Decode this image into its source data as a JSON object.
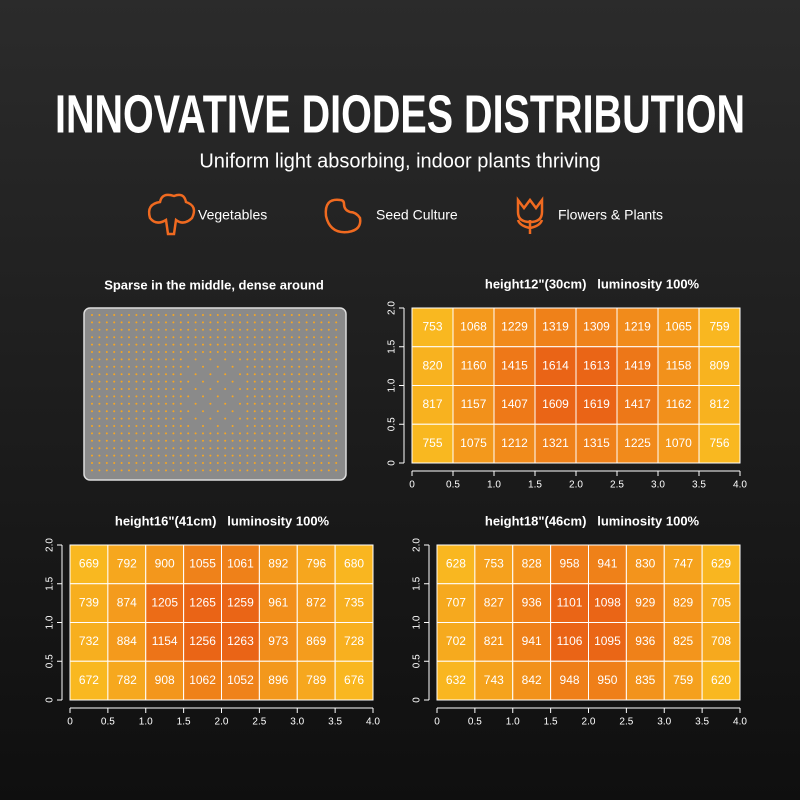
{
  "header": {
    "title": "INNOVATIVE DIODES DISTRIBUTION",
    "subtitle": "Uniform light absorbing, indoor plants thriving"
  },
  "features": [
    "Vegetables",
    "Seed Culture",
    "Flowers & Plants"
  ],
  "panel": {
    "title": "Sparse in the middle, dense around"
  },
  "chart_data": [
    {
      "type": "heatmap",
      "title": "height12\"(30cm)   luminosity 100%",
      "xlim": [
        0,
        4
      ],
      "ylim": [
        0,
        2
      ],
      "xticks": [
        0,
        0.5,
        {
          "value": 1,
          "label": "1.0"
        },
        1.5,
        {
          "value": 2,
          "label": "2.0"
        },
        2.5,
        {
          "value": 3,
          "label": "3.0"
        },
        3.5,
        {
          "value": 4,
          "label": "4.0"
        }
      ],
      "yticks": [
        0,
        0.5,
        {
          "value": 1,
          "label": "1.0"
        },
        1.5,
        {
          "value": 2,
          "label": "2.0"
        }
      ],
      "values": [
        [
          753,
          1068,
          1229,
          1319,
          1309,
          1219,
          1065,
          759
        ],
        [
          820,
          1160,
          1415,
          1614,
          1613,
          1419,
          1158,
          809
        ],
        [
          817,
          1157,
          1407,
          1609,
          1619,
          1417,
          1162,
          812
        ],
        [
          755,
          1075,
          1212,
          1321,
          1315,
          1225,
          1070,
          756
        ]
      ]
    },
    {
      "type": "heatmap",
      "title": "height16\"(41cm)   luminosity 100%",
      "xlim": [
        0,
        4
      ],
      "ylim": [
        0,
        2
      ],
      "xticks": [
        0,
        0.5,
        {
          "value": 1,
          "label": "1.0"
        },
        1.5,
        {
          "value": 2,
          "label": "2.0"
        },
        2.5,
        {
          "value": 3,
          "label": "3.0"
        },
        3.5,
        {
          "value": 4,
          "label": "4.0"
        }
      ],
      "yticks": [
        0,
        0.5,
        {
          "value": 1,
          "label": "1.0"
        },
        1.5,
        {
          "value": 2,
          "label": "2.0"
        }
      ],
      "values": [
        [
          669,
          792,
          900,
          1055,
          1061,
          892,
          796,
          680
        ],
        [
          739,
          874,
          1205,
          1265,
          1259,
          961,
          872,
          735
        ],
        [
          732,
          884,
          1154,
          1256,
          1263,
          973,
          869,
          728
        ],
        [
          672,
          782,
          908,
          1062,
          1052,
          896,
          789,
          676
        ]
      ]
    },
    {
      "type": "heatmap",
      "title": "height18\"(46cm)   luminosity 100%",
      "xlim": [
        0,
        4
      ],
      "ylim": [
        0,
        2
      ],
      "xticks": [
        0,
        0.5,
        {
          "value": 1,
          "label": "1.0"
        },
        1.5,
        {
          "value": 2,
          "label": "2.0"
        },
        2.5,
        {
          "value": 3,
          "label": "3.0"
        },
        3.5,
        {
          "value": 4,
          "label": "4.0"
        }
      ],
      "yticks": [
        0,
        0.5,
        {
          "value": 1,
          "label": "1.0"
        },
        1.5,
        {
          "value": 2,
          "label": "2.0"
        }
      ],
      "values": [
        [
          628,
          753,
          828,
          958,
          941,
          830,
          747,
          629
        ],
        [
          707,
          827,
          936,
          1101,
          1098,
          929,
          829,
          705
        ],
        [
          702,
          821,
          941,
          1106,
          1095,
          936,
          825,
          708
        ],
        [
          632,
          743,
          842,
          948,
          950,
          835,
          759,
          620
        ]
      ]
    }
  ]
}
